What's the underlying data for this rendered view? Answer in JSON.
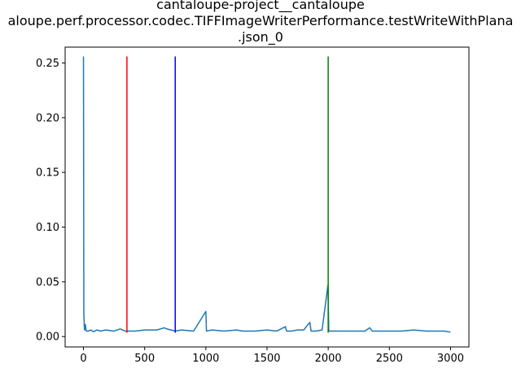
{
  "chart_data": {
    "type": "line",
    "title_lines": [
      "cantaloupe-project__cantaloupe",
      "aloupe.perf.processor.codec.TIFFImageWriterPerformance.testWriteWithPlana",
      ".json_0"
    ],
    "xlabel": "",
    "ylabel": "",
    "xlim": [
      -150,
      3150
    ],
    "ylim": [
      -0.0095,
      0.2645
    ],
    "x_ticks": [
      0,
      500,
      1000,
      1500,
      2000,
      2500,
      3000
    ],
    "x_tick_labels": [
      "0",
      "500",
      "1000",
      "1500",
      "2000",
      "2500",
      "3000"
    ],
    "y_ticks": [
      0.0,
      0.05,
      0.1,
      0.15,
      0.2,
      0.25
    ],
    "y_tick_labels": [
      "0.00",
      "0.05",
      "0.10",
      "0.15",
      "0.20",
      "0.25"
    ],
    "grid": false,
    "legend": "none",
    "series": [
      {
        "color": "#1f77b4",
        "baseline": 0.0045,
        "points": [
          [
            0,
            0.256
          ],
          [
            3,
            0.02
          ],
          [
            8,
            0.006
          ],
          [
            15,
            0.011
          ],
          [
            22,
            0.005
          ],
          [
            40,
            0.005
          ],
          [
            60,
            0.006
          ],
          [
            80,
            0.0045
          ],
          [
            110,
            0.006
          ],
          [
            140,
            0.005
          ],
          [
            180,
            0.006
          ],
          [
            250,
            0.005
          ],
          [
            300,
            0.007
          ],
          [
            340,
            0.005
          ],
          [
            420,
            0.005
          ],
          [
            500,
            0.006
          ],
          [
            600,
            0.006
          ],
          [
            660,
            0.008
          ],
          [
            680,
            0.007
          ],
          [
            750,
            0.005
          ],
          [
            800,
            0.006
          ],
          [
            900,
            0.005
          ],
          [
            1000,
            0.023
          ],
          [
            1005,
            0.005
          ],
          [
            1050,
            0.006
          ],
          [
            1150,
            0.005
          ],
          [
            1250,
            0.006
          ],
          [
            1300,
            0.005
          ],
          [
            1400,
            0.005
          ],
          [
            1500,
            0.006
          ],
          [
            1580,
            0.005
          ],
          [
            1650,
            0.009
          ],
          [
            1660,
            0.005
          ],
          [
            1700,
            0.005
          ],
          [
            1750,
            0.006
          ],
          [
            1800,
            0.006
          ],
          [
            1850,
            0.013
          ],
          [
            1860,
            0.005
          ],
          [
            1900,
            0.005
          ],
          [
            1950,
            0.006
          ],
          [
            1998,
            0.047
          ],
          [
            2005,
            0.005
          ],
          [
            2100,
            0.005
          ],
          [
            2200,
            0.005
          ],
          [
            2300,
            0.005
          ],
          [
            2340,
            0.008
          ],
          [
            2360,
            0.005
          ],
          [
            2400,
            0.005
          ],
          [
            2500,
            0.005
          ],
          [
            2600,
            0.005
          ],
          [
            2700,
            0.006
          ],
          [
            2800,
            0.005
          ],
          [
            2900,
            0.005
          ],
          [
            2950,
            0.005
          ],
          [
            3000,
            0.004
          ]
        ]
      }
    ],
    "vertical_lines": [
      {
        "x": 355,
        "ymin": 0.0035,
        "ymax": 0.256,
        "color": "#ff0000"
      },
      {
        "x": 750,
        "ymin": 0.0035,
        "ymax": 0.256,
        "color": "#0000ff"
      },
      {
        "x": 2000,
        "ymin": 0.0035,
        "ymax": 0.256,
        "color": "#008000"
      }
    ]
  }
}
